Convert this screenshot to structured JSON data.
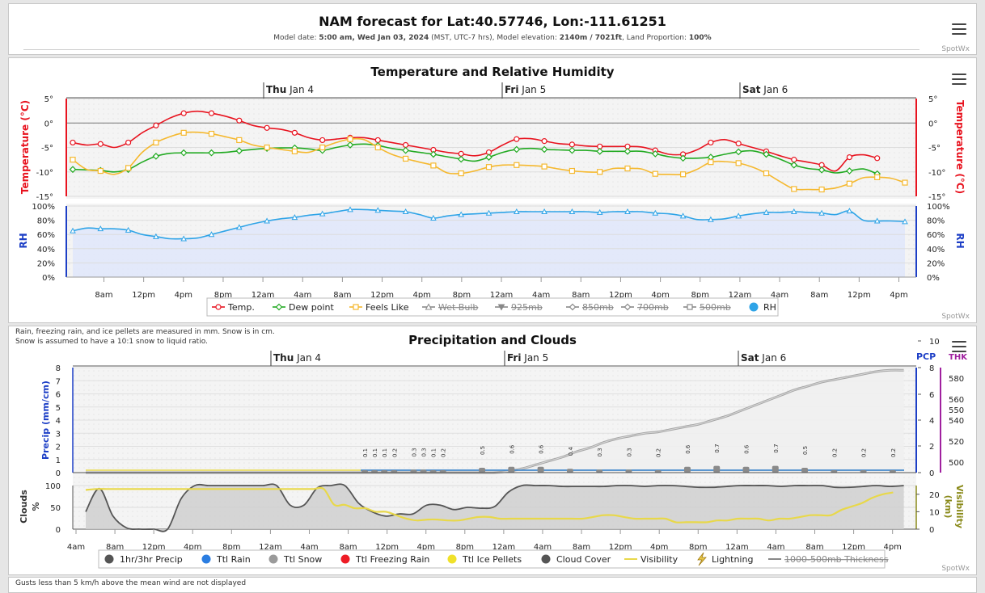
{
  "header": {
    "title": "NAM forecast for Lat:40.57746, Lon:-111.61251",
    "model_date_label": "Model date: ",
    "model_date": "5:00 am, Wed Jan 03, 2024",
    "tz": " (MST, UTC-7 hrs), Model elevation: ",
    "elevation": "2140m / 7021ft",
    "land_label": ", Land Proportion: ",
    "land": "100%",
    "credit": "SpotWx"
  },
  "chart_data": [
    {
      "type": "line",
      "title": "Temperature and Relative Humidity",
      "day_markers": [
        {
          "day": "Thu",
          "date": " Jan 4"
        },
        {
          "day": "Fri",
          "date": " Jan 5"
        },
        {
          "day": "Sat",
          "date": " Jan 6"
        }
      ],
      "x_ticks": [
        "8am",
        "12pm",
        "4pm",
        "8pm",
        "12am",
        "4am",
        "8am",
        "12pm",
        "4pm",
        "8pm",
        "12am",
        "4am",
        "8am",
        "12pm",
        "4pm",
        "8pm",
        "12am",
        "4am",
        "8am",
        "12pm",
        "4pm"
      ],
      "temp_axis": {
        "label": "Temperature (°C)",
        "ticks": [
          "5°",
          "0°",
          "-5°",
          "-10°",
          "-15°"
        ],
        "right_ticks": [
          "5°",
          "0°",
          "-5°",
          "-10°",
          "-15°"
        ],
        "ylim": [
          -15,
          5
        ]
      },
      "rh_axis": {
        "label": "RH",
        "ticks": [
          "100%",
          "80%",
          "60%",
          "40%",
          "20%",
          "0%"
        ],
        "ylim": [
          0,
          100
        ]
      },
      "series": [
        {
          "name": "Temp.",
          "color": "#e8131f",
          "values": [
            -4,
            -4.5,
            -4.3,
            -5,
            -4,
            -2,
            -0.5,
            1,
            2,
            2.4,
            2,
            1.4,
            0.5,
            -0.5,
            -1,
            -1.3,
            -2,
            -3,
            -3.5,
            -3.3,
            -3,
            -3,
            -3.5,
            -4,
            -4.5,
            -5,
            -5.5,
            -6,
            -6.3,
            -6.7,
            -6,
            -4.5,
            -3.3,
            -3.2,
            -3.7,
            -4.2,
            -4.4,
            -4.7,
            -4.8,
            -4.8,
            -4.8,
            -4.9,
            -5.6,
            -6.4,
            -6.4,
            -5.5,
            -4,
            -3.4,
            -4.2,
            -5,
            -5.8,
            -6.7,
            -7.5,
            -8,
            -8.6,
            -9.8,
            -7,
            -6.5,
            -7.2
          ]
        },
        {
          "name": "Dew point",
          "color": "#22aa22",
          "values": [
            -9.5,
            -9.6,
            -9.7,
            -10,
            -9.5,
            -8,
            -6.8,
            -6.2,
            -6.1,
            -6.1,
            -6.1,
            -6,
            -5.7,
            -5.4,
            -5.2,
            -5.1,
            -5.1,
            -5.3,
            -5.6,
            -5,
            -4.5,
            -4.3,
            -4.6,
            -5.2,
            -5.6,
            -6,
            -6.4,
            -6.9,
            -7.4,
            -7.8,
            -7,
            -6,
            -5.4,
            -5.2,
            -5.4,
            -5.5,
            -5.6,
            -5.6,
            -5.8,
            -5.8,
            -5.8,
            -5.8,
            -6.3,
            -6.9,
            -7.2,
            -7.2,
            -7,
            -6.4,
            -5.9,
            -5.7,
            -6.4,
            -7.4,
            -8.6,
            -9.3,
            -9.6,
            -10.2,
            -9.8,
            -9.4,
            -10.4
          ]
        },
        {
          "name": "Feels Like",
          "color": "#f5b82e",
          "values": [
            -7.5,
            -9.5,
            -9.8,
            -10.5,
            -9.2,
            -6,
            -4,
            -2.8,
            -2,
            -1.9,
            -2.2,
            -2.8,
            -3.5,
            -4.5,
            -5,
            -5.4,
            -5.8,
            -6,
            -5,
            -4,
            -3.3,
            -3.4,
            -5,
            -6.4,
            -7.3,
            -8,
            -8.7,
            -10.2,
            -10.3,
            -9.8,
            -9,
            -8.6,
            -8.6,
            -8.7,
            -8.9,
            -9.4,
            -9.8,
            -10,
            -10,
            -9.3,
            -9.3,
            -9.4,
            -10.4,
            -10.5,
            -10.5,
            -9.5,
            -8,
            -7.9,
            -8.2,
            -9,
            -10.3,
            -12,
            -13.5,
            -13.6,
            -13.6,
            -13.3,
            -12.4,
            -11.2,
            -11.1,
            -11.3,
            -12.2
          ]
        },
        {
          "name": "RH",
          "color": "#2fa4e7",
          "values": [
            65,
            69,
            68,
            68,
            66,
            60,
            57,
            54,
            54,
            55,
            60,
            65,
            70,
            75,
            79,
            82,
            84,
            87,
            89,
            92,
            95,
            95,
            94,
            93,
            92,
            88,
            83,
            86,
            88,
            89,
            90,
            91,
            92,
            92,
            92,
            92,
            92,
            92,
            91,
            92,
            92,
            92,
            90,
            89,
            86,
            81,
            81,
            82,
            86,
            89,
            91,
            91,
            92,
            91,
            90,
            88,
            93,
            80,
            79,
            79,
            78
          ]
        }
      ],
      "legend": [
        {
          "name": "Temp.",
          "color": "#e8131f",
          "marker": "circle",
          "hidden": false
        },
        {
          "name": "Dew point",
          "color": "#22aa22",
          "marker": "diamond",
          "hidden": false
        },
        {
          "name": "Feels Like",
          "color": "#f5b82e",
          "marker": "square",
          "hidden": false
        },
        {
          "name": "Wet Bulb",
          "color": "#888888",
          "marker": "triangle",
          "hidden": true
        },
        {
          "name": "925mb",
          "color": "#888888",
          "marker": "triangle-down",
          "hidden": true
        },
        {
          "name": "850mb",
          "color": "#888888",
          "marker": "diamond",
          "hidden": true
        },
        {
          "name": "700mb",
          "color": "#888888",
          "marker": "diamond",
          "hidden": true
        },
        {
          "name": "500mb",
          "color": "#888888",
          "marker": "square",
          "hidden": true
        },
        {
          "name": "RH",
          "color": "#2fa4e7",
          "marker": "dot",
          "hidden": false
        }
      ],
      "credit": "SpotWx"
    },
    {
      "type": "bar",
      "title": "Precipitation and Clouds",
      "notes": [
        "Rain, freezing rain, and ice pellets are measured in mm. Snow is in cm.",
        "Snow is assumed to have a 10:1 snow to liquid ratio."
      ],
      "day_markers": [
        {
          "day": "Thu",
          "date": " Jan 4"
        },
        {
          "day": "Fri",
          "date": " Jan 5"
        },
        {
          "day": "Sat",
          "date": " Jan 6"
        }
      ],
      "x_ticks": [
        "4am",
        "8am",
        "12pm",
        "4pm",
        "8pm",
        "12am",
        "4am",
        "8am",
        "12pm",
        "4pm",
        "8pm",
        "12am",
        "4am",
        "8am",
        "12pm",
        "4pm",
        "8pm",
        "12am",
        "4am",
        "8am",
        "12pm",
        "4pm"
      ],
      "precip_axis": {
        "label": "Precip (mm/cm)",
        "ticks": [
          "8",
          "7",
          "6",
          "5",
          "4",
          "3",
          "2",
          "1",
          "0"
        ],
        "ylim": [
          0,
          8
        ]
      },
      "pcp_axis": {
        "label": "PCP",
        "ticks": [
          "10",
          "8",
          "6",
          "4",
          "2",
          "0"
        ],
        "ylim": [
          0,
          10
        ]
      },
      "thk_axis": {
        "label": "THK",
        "ticks": [
          "580",
          "560",
          "550",
          "540",
          "520",
          "500"
        ]
      },
      "cloud_axis": {
        "label": "Clouds %",
        "ticks": [
          "100",
          "50",
          "0"
        ],
        "ylim": [
          0,
          100
        ]
      },
      "vis_axis": {
        "label": "Visibility (km)",
        "ticks": [
          "20",
          "10",
          "0"
        ],
        "ylim": [
          0,
          25
        ]
      },
      "precip_bars": [
        {
          "slot": 30,
          "value": 0.1,
          "label": "0.1"
        },
        {
          "slot": 31,
          "value": 0.1,
          "label": "0.1"
        },
        {
          "slot": 32,
          "value": 0.1,
          "label": "0.1"
        },
        {
          "slot": 33,
          "value": 0.2,
          "label": "0.2"
        },
        {
          "slot": 35,
          "value": 0.3,
          "label": "0.3"
        },
        {
          "slot": 36,
          "value": 0.3,
          "label": "0.3"
        },
        {
          "slot": 37,
          "value": 0.1,
          "label": "0.1"
        },
        {
          "slot": 38,
          "value": 0.2,
          "label": "0.2"
        },
        {
          "slot": 42,
          "value": 0.5,
          "label": "0.5"
        },
        {
          "slot": 45,
          "value": 0.6,
          "label": "0.6"
        },
        {
          "slot": 48,
          "value": 0.6,
          "label": "0.6"
        },
        {
          "slot": 51,
          "value": 0.4,
          "label": "0.4"
        },
        {
          "slot": 54,
          "value": 0.3,
          "label": "0.3"
        },
        {
          "slot": 57,
          "value": 0.3,
          "label": "0.3"
        },
        {
          "slot": 60,
          "value": 0.2,
          "label": "0.2"
        },
        {
          "slot": 63,
          "value": 0.6,
          "label": "0.6"
        },
        {
          "slot": 66,
          "value": 0.7,
          "label": "0.7"
        },
        {
          "slot": 69,
          "value": 0.6,
          "label": "0.6"
        },
        {
          "slot": 72,
          "value": 0.7,
          "label": "0.7"
        },
        {
          "slot": 75,
          "value": 0.5,
          "label": "0.5"
        },
        {
          "slot": 78,
          "value": 0.2,
          "label": "0.2"
        },
        {
          "slot": 81,
          "value": 0.2,
          "label": "0.2"
        },
        {
          "slot": 84,
          "value": 0.2,
          "label": "0.2"
        }
      ],
      "total_snow": [
        0,
        0,
        0,
        0,
        0,
        0,
        0,
        0,
        0,
        0,
        0,
        0,
        0,
        0,
        0,
        0,
        0,
        0,
        0,
        0,
        0,
        0,
        0,
        0,
        0,
        0,
        0,
        0,
        0,
        0,
        0,
        0.1,
        0.3,
        0.6,
        0.9,
        1.2,
        1.6,
        1.9,
        2.3,
        2.6,
        2.8,
        3,
        3.1,
        3.3,
        3.5,
        3.7,
        4,
        4.3,
        4.7,
        5.1,
        5.5,
        5.9,
        6.3,
        6.6,
        6.9,
        7.1,
        7.3,
        7.5,
        7.7,
        7.8,
        7.8
      ],
      "cloud_cover": [
        40,
        93,
        30,
        3,
        0,
        0,
        0,
        70,
        100,
        100,
        100,
        100,
        100,
        100,
        100,
        55,
        55,
        95,
        100,
        100,
        60,
        40,
        30,
        35,
        35,
        55,
        55,
        45,
        50,
        48,
        52,
        85,
        100,
        100,
        100,
        98,
        98,
        98,
        98,
        100,
        100,
        98,
        100,
        100,
        98,
        96,
        96,
        98,
        100,
        100,
        100,
        98,
        100,
        100,
        100,
        96,
        96,
        98,
        100,
        98,
        100
      ],
      "visibility": [
        22.5,
        23,
        23,
        23,
        23,
        23,
        23,
        23,
        23,
        23,
        23,
        23,
        23,
        23,
        23,
        23,
        23,
        23,
        23,
        23,
        23,
        23,
        23,
        23,
        14,
        14,
        12,
        12,
        10,
        10,
        8,
        6,
        5,
        5.5,
        5.5,
        5,
        5,
        6,
        7,
        7,
        6,
        6,
        6,
        6,
        6,
        6,
        6,
        6,
        6,
        7,
        8,
        8,
        7,
        6,
        6,
        6,
        6,
        4,
        4,
        4,
        4,
        5,
        5,
        6,
        6,
        6,
        5,
        6,
        6,
        7,
        8,
        8,
        8,
        11,
        13,
        15,
        18,
        20,
        21
      ],
      "legend": [
        {
          "name": "1hr/3hr Precip",
          "color": "#555555",
          "marker": "dot",
          "hidden": false
        },
        {
          "name": "Ttl Rain",
          "color": "#2a7de1",
          "marker": "dot",
          "hidden": false
        },
        {
          "name": "Ttl Snow",
          "color": "#9a9a9a",
          "marker": "dot",
          "hidden": false
        },
        {
          "name": "Ttl Freezing Rain",
          "color": "#ee1c25",
          "marker": "dot",
          "hidden": false
        },
        {
          "name": "Ttl Ice Pellets",
          "color": "#f0e12a",
          "marker": "dot",
          "hidden": false
        },
        {
          "name": "Cloud Cover",
          "color": "#555555",
          "marker": "dot",
          "hidden": false
        },
        {
          "name": "Visibility",
          "color": "#e8d84a",
          "marker": "line",
          "hidden": false
        },
        {
          "name": "Lightning",
          "color": "#a07a10",
          "marker": "bolt",
          "hidden": false
        },
        {
          "name": "1000-500mb Thickness",
          "color": "#888888",
          "marker": "line",
          "hidden": true
        }
      ],
      "footer_note": "Gusts less than 5 km/h above the mean wind are not displayed",
      "credit": "SpotWx"
    }
  ]
}
